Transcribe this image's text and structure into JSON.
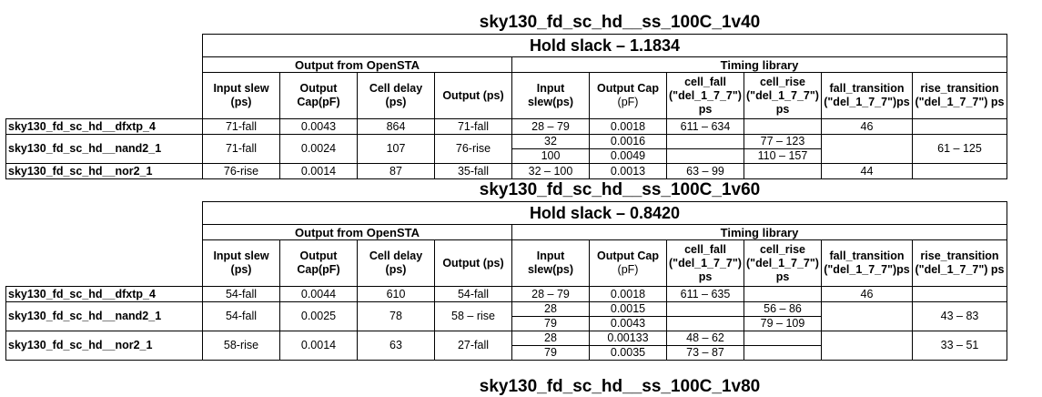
{
  "sections": [
    {
      "corner": "sky130_fd_sc_hd__ss_100C_1v40",
      "hold_slack": "Hold slack – 1.1834",
      "group_opensta": "Output from OpenSTA",
      "group_timing": "Timing library",
      "rows": [
        {
          "cell": "sky130_fd_sc_hd__dfxtp_4",
          "input_slew": "71-fall",
          "output_cap": "0.0043",
          "cell_delay": "864",
          "output_ps": "71-fall",
          "lib": [
            {
              "in_slew": "28 – 79",
              "out_cap": "0.0018",
              "cell_fall": "611 – 634",
              "cell_rise": ""
            }
          ],
          "fall_transition": "46",
          "rise_transition": ""
        },
        {
          "cell": "sky130_fd_sc_hd__nand2_1",
          "input_slew": "71-fall",
          "output_cap": "0.0024",
          "cell_delay": "107",
          "output_ps": "76-rise",
          "lib": [
            {
              "in_slew": "32",
              "out_cap": "0.0016",
              "cell_fall": "",
              "cell_rise": "77 – 123"
            },
            {
              "in_slew": "100",
              "out_cap": "0.0049",
              "cell_fall": "",
              "cell_rise": "110 – 157"
            }
          ],
          "fall_transition": "",
          "rise_transition": "61 – 125"
        },
        {
          "cell": "sky130_fd_sc_hd__nor2_1",
          "input_slew": "76-rise",
          "output_cap": "0.0014",
          "cell_delay": "87",
          "output_ps": "35-fall",
          "lib": [
            {
              "in_slew": "32 – 100",
              "out_cap": "0.0013",
              "cell_fall": "63 – 99",
              "cell_rise": ""
            }
          ],
          "fall_transition": "44",
          "rise_transition": ""
        }
      ]
    },
    {
      "corner": "sky130_fd_sc_hd__ss_100C_1v60",
      "hold_slack": "Hold slack – 0.8420",
      "group_opensta": "Output from OpenSTA",
      "group_timing": "Timing library",
      "rows": [
        {
          "cell": "sky130_fd_sc_hd__dfxtp_4",
          "input_slew": "54-fall",
          "output_cap": "0.0044",
          "cell_delay": "610",
          "output_ps": "54-fall",
          "lib": [
            {
              "in_slew": "28 – 79",
              "out_cap": "0.0018",
              "cell_fall": "611 – 635",
              "cell_rise": ""
            }
          ],
          "fall_transition": "46",
          "rise_transition": ""
        },
        {
          "cell": "sky130_fd_sc_hd__nand2_1",
          "input_slew": "54-fall",
          "output_cap": "0.0025",
          "cell_delay": "78",
          "output_ps": "58 – rise",
          "lib": [
            {
              "in_slew": "28",
              "out_cap": "0.0015",
              "cell_fall": "",
              "cell_rise": "56 – 86"
            },
            {
              "in_slew": "79",
              "out_cap": "0.0043",
              "cell_fall": "",
              "cell_rise": "79 – 109"
            }
          ],
          "fall_transition": "",
          "rise_transition": "43 – 83"
        },
        {
          "cell": "sky130_fd_sc_hd__nor2_1",
          "input_slew": "58-rise",
          "output_cap": "0.0014",
          "cell_delay": "63",
          "output_ps": "27-fall",
          "lib": [
            {
              "in_slew": "28",
              "out_cap": "0.00133",
              "cell_fall": "48 – 62",
              "cell_rise": ""
            },
            {
              "in_slew": "79",
              "out_cap": "0.0035",
              "cell_fall": "73 – 87",
              "cell_rise": ""
            }
          ],
          "fall_transition": "",
          "rise_transition": "33 – 51"
        }
      ]
    }
  ],
  "headers": {
    "input_slew_bold": "Input slew",
    "input_slew_unit": "(ps)",
    "output_cap_bold": "Output",
    "output_cap_unit": "Cap(pF)",
    "cell_delay_bold": "Cell delay",
    "cell_delay_unit": "(ps)",
    "output_ps": "Output (ps)",
    "lib_input_bold": "Input",
    "lib_input_unit": "slew(ps)",
    "lib_outcap_bold": "Output Cap",
    "lib_outcap_unit": "(pF)",
    "cell_fall_1": "cell_fall",
    "cell_fall_2": "(\"del_1_7_7\")",
    "cell_fall_3": "ps",
    "cell_rise_1": "cell_rise",
    "cell_rise_2": "(\"del_1_7_7\")",
    "cell_rise_3": "ps",
    "fall_transition_1": "fall_transition",
    "fall_transition_2": "(\"del_1_7_7\")ps",
    "rise_transition_1": "rise_transition",
    "rise_transition_2": "(\"del_1_7_7\") ps"
  },
  "cut_off_title": "sky130_fd_sc_hd__ss_100C_1v80"
}
